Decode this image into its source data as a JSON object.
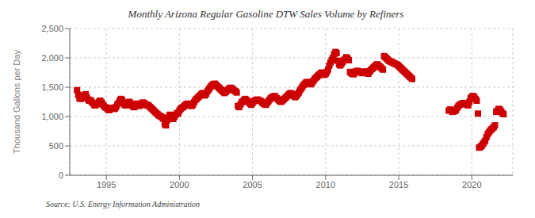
{
  "chart_data": {
    "type": "scatter",
    "title": "Monthly Arizona Regular Gasoline DTW Sales Volume by Refiners",
    "y_label": "Thousand Gallons per Day",
    "annotations": [
      "Source: U.S. Energy Information Administration"
    ],
    "color": "#cc0000",
    "marker": "square",
    "grid": true,
    "xlim": [
      1992.5,
      2022.8
    ],
    "xticks": [
      1995,
      2000,
      2005,
      2010,
      2015,
      2020
    ],
    "ylim": [
      0,
      2500
    ],
    "yticks": [
      0,
      500,
      {
        "value": 1000,
        "label": "1,000"
      },
      {
        "value": 1500,
        "label": "1,500"
      },
      {
        "value": 2000,
        "label": "2,000"
      },
      {
        "value": 2500,
        "label": "2,500"
      }
    ],
    "x": [
      1993.0,
      1993.083,
      1993.167,
      1993.25,
      1993.333,
      1993.417,
      1993.5,
      1993.583,
      1993.667,
      1993.75,
      1993.833,
      1993.917,
      1994.0,
      1994.083,
      1994.167,
      1994.25,
      1994.333,
      1994.417,
      1994.5,
      1994.583,
      1994.667,
      1994.75,
      1994.833,
      1994.917,
      1995.0,
      1995.083,
      1995.167,
      1995.25,
      1995.333,
      1995.417,
      1995.5,
      1995.583,
      1995.667,
      1995.75,
      1995.833,
      1995.917,
      1996.0,
      1996.083,
      1996.167,
      1996.25,
      1996.333,
      1996.417,
      1996.5,
      1996.583,
      1996.667,
      1996.75,
      1996.833,
      1996.917,
      1997.0,
      1997.083,
      1997.167,
      1997.25,
      1997.333,
      1997.417,
      1997.5,
      1997.583,
      1997.667,
      1997.75,
      1997.833,
      1997.917,
      1998.0,
      1998.083,
      1998.167,
      1998.25,
      1998.333,
      1998.417,
      1998.5,
      1998.583,
      1998.667,
      1998.75,
      1998.833,
      1998.917,
      1999.0,
      1999.083,
      1999.167,
      1999.25,
      1999.333,
      1999.417,
      1999.5,
      1999.583,
      1999.667,
      1999.75,
      1999.833,
      1999.917,
      2000.0,
      2000.083,
      2000.167,
      2000.25,
      2000.333,
      2000.417,
      2000.5,
      2000.583,
      2000.667,
      2000.75,
      2000.833,
      2000.917,
      2001.0,
      2001.083,
      2001.167,
      2001.25,
      2001.333,
      2001.417,
      2001.5,
      2001.583,
      2001.667,
      2001.75,
      2001.833,
      2001.917,
      2002.0,
      2002.083,
      2002.167,
      2002.25,
      2002.333,
      2002.417,
      2002.5,
      2002.583,
      2002.667,
      2002.75,
      2002.833,
      2002.917,
      2003.0,
      2003.083,
      2003.167,
      2003.25,
      2003.333,
      2003.417,
      2003.5,
      2003.583,
      2003.667,
      2003.75,
      2003.833,
      2003.917,
      2004.0,
      2004.083,
      2004.167,
      2004.25,
      2004.333,
      2004.417,
      2004.5,
      2004.583,
      2004.667,
      2004.75,
      2004.833,
      2004.917,
      2005.0,
      2005.083,
      2005.167,
      2005.25,
      2005.333,
      2005.417,
      2005.5,
      2005.583,
      2005.667,
      2005.75,
      2005.833,
      2005.917,
      2006.0,
      2006.083,
      2006.167,
      2006.25,
      2006.333,
      2006.417,
      2006.5,
      2006.583,
      2006.667,
      2006.75,
      2006.833,
      2006.917,
      2007.0,
      2007.083,
      2007.167,
      2007.25,
      2007.333,
      2007.417,
      2007.5,
      2007.583,
      2007.667,
      2007.75,
      2007.833,
      2007.917,
      2008.0,
      2008.083,
      2008.167,
      2008.25,
      2008.333,
      2008.417,
      2008.5,
      2008.583,
      2008.667,
      2008.75,
      2008.833,
      2008.917,
      2009.0,
      2009.083,
      2009.167,
      2009.25,
      2009.333,
      2009.417,
      2009.5,
      2009.583,
      2009.667,
      2009.75,
      2009.833,
      2009.917,
      2010.0,
      2010.083,
      2010.167,
      2010.25,
      2010.333,
      2010.417,
      2010.5,
      2010.583,
      2010.667,
      2010.75,
      2010.833,
      2010.917,
      2011.0,
      2011.083,
      2011.167,
      2011.25,
      2011.333,
      2011.417,
      2011.5,
      2011.583,
      2011.667,
      2011.75,
      2011.833,
      2011.917,
      2012.0,
      2012.083,
      2012.167,
      2012.25,
      2012.333,
      2012.417,
      2012.5,
      2012.583,
      2012.667,
      2012.75,
      2012.833,
      2012.917,
      2013.0,
      2013.083,
      2013.167,
      2013.25,
      2013.333,
      2013.417,
      2013.5,
      2013.583,
      2013.667,
      2013.75,
      2013.833,
      2013.917,
      2014.0,
      2014.083,
      2014.167,
      2014.25,
      2014.333,
      2014.417,
      2014.5,
      2014.583,
      2014.667,
      2014.75,
      2014.833,
      2014.917,
      2015.0,
      2015.083,
      2015.167,
      2015.25,
      2015.333,
      2015.417,
      2015.5,
      2015.583,
      2015.667,
      2015.75,
      2015.833,
      2015.917,
      2018.417,
      2018.5,
      2018.583,
      2018.667,
      2018.75,
      2018.833,
      2018.917,
      2019.0,
      2019.083,
      2019.167,
      2019.25,
      2019.333,
      2019.417,
      2019.5,
      2019.583,
      2019.667,
      2019.75,
      2019.833,
      2019.917,
      2020.0,
      2020.083,
      2020.167,
      2020.25,
      2020.333,
      2020.417,
      2020.5,
      2020.583,
      2020.667,
      2020.75,
      2020.833,
      2020.917,
      2021.0,
      2021.083,
      2021.167,
      2021.25,
      2021.333,
      2021.417,
      2021.5,
      2021.583,
      2021.667,
      2021.75,
      2021.833,
      2021.917,
      2022.0,
      2022.083,
      2022.167
    ],
    "values": [
      1450,
      1370,
      1310,
      1300,
      1320,
      1350,
      1360,
      1380,
      1330,
      1290,
      1270,
      1280,
      1250,
      1230,
      1200,
      1190,
      1210,
      1230,
      1250,
      1270,
      1240,
      1210,
      1180,
      1160,
      1150,
      1130,
      1110,
      1120,
      1140,
      1150,
      1140,
      1130,
      1160,
      1200,
      1230,
      1270,
      1300,
      1280,
      1240,
      1200,
      1190,
      1210,
      1230,
      1250,
      1220,
      1190,
      1170,
      1160,
      1200,
      1220,
      1210,
      1180,
      1200,
      1220,
      1240,
      1230,
      1210,
      1190,
      1200,
      1180,
      1160,
      1140,
      1120,
      1100,
      1080,
      1060,
      1040,
      1020,
      1010,
      1000,
      980,
      960,
      870,
      850,
      940,
      990,
      1030,
      1010,
      980,
      960,
      1000,
      1030,
      1060,
      1050,
      1100,
      1130,
      1150,
      1160,
      1180,
      1200,
      1210,
      1220,
      1210,
      1190,
      1180,
      1200,
      1240,
      1280,
      1300,
      1320,
      1340,
      1360,
      1380,
      1400,
      1380,
      1360,
      1390,
      1430,
      1460,
      1490,
      1520,
      1540,
      1550,
      1560,
      1540,
      1520,
      1500,
      1480,
      1460,
      1440,
      1420,
      1400,
      1420,
      1440,
      1460,
      1480,
      1490,
      1480,
      1460,
      1440,
      1430,
      1410,
      1180,
      1160,
      1200,
      1240,
      1260,
      1280,
      1300,
      1280,
      1260,
      1240,
      1220,
      1200,
      1230,
      1260,
      1270,
      1280,
      1290,
      1280,
      1270,
      1260,
      1240,
      1220,
      1210,
      1200,
      1230,
      1260,
      1290,
      1310,
      1330,
      1340,
      1350,
      1330,
      1310,
      1290,
      1270,
      1250,
      1260,
      1280,
      1300,
      1320,
      1340,
      1360,
      1380,
      1400,
      1390,
      1370,
      1350,
      1330,
      1350,
      1380,
      1410,
      1450,
      1480,
      1510,
      1540,
      1560,
      1580,
      1590,
      1570,
      1560,
      1550,
      1580,
      1610,
      1640,
      1660,
      1680,
      1700,
      1720,
      1740,
      1750,
      1730,
      1710,
      1730,
      1760,
      1800,
      1870,
      1920,
      1960,
      2000,
      2060,
      2100,
      2080,
      1950,
      1890,
      1870,
      1900,
      1930,
      1960,
      1980,
      2010,
      1990,
      1960,
      1760,
      1740,
      1730,
      1720,
      1750,
      1770,
      1780,
      1770,
      1760,
      1750,
      1740,
      1750,
      1760,
      1770,
      1750,
      1730,
      1760,
      1790,
      1810,
      1830,
      1850,
      1870,
      1890,
      1880,
      1860,
      1840,
      1820,
      1800,
      2030,
      2010,
      1990,
      1970,
      1950,
      1940,
      1930,
      1920,
      1910,
      1900,
      1890,
      1880,
      1860,
      1840,
      1820,
      1800,
      1780,
      1760,
      1740,
      1720,
      1700,
      1680,
      1660,
      1640,
      1100,
      1120,
      1110,
      1080,
      1100,
      1090,
      1110,
      1150,
      1180,
      1200,
      1210,
      1220,
      1230,
      1220,
      1210,
      1200,
      1190,
      1250,
      1310,
      1340,
      1350,
      1330,
      1300,
      1270,
      1050,
      470,
      480,
      500,
      530,
      560,
      590,
      650,
      700,
      730,
      760,
      780,
      800,
      820,
      850,
      1080,
      1100,
      1130,
      1120,
      1090,
      1060,
      1040
    ]
  }
}
